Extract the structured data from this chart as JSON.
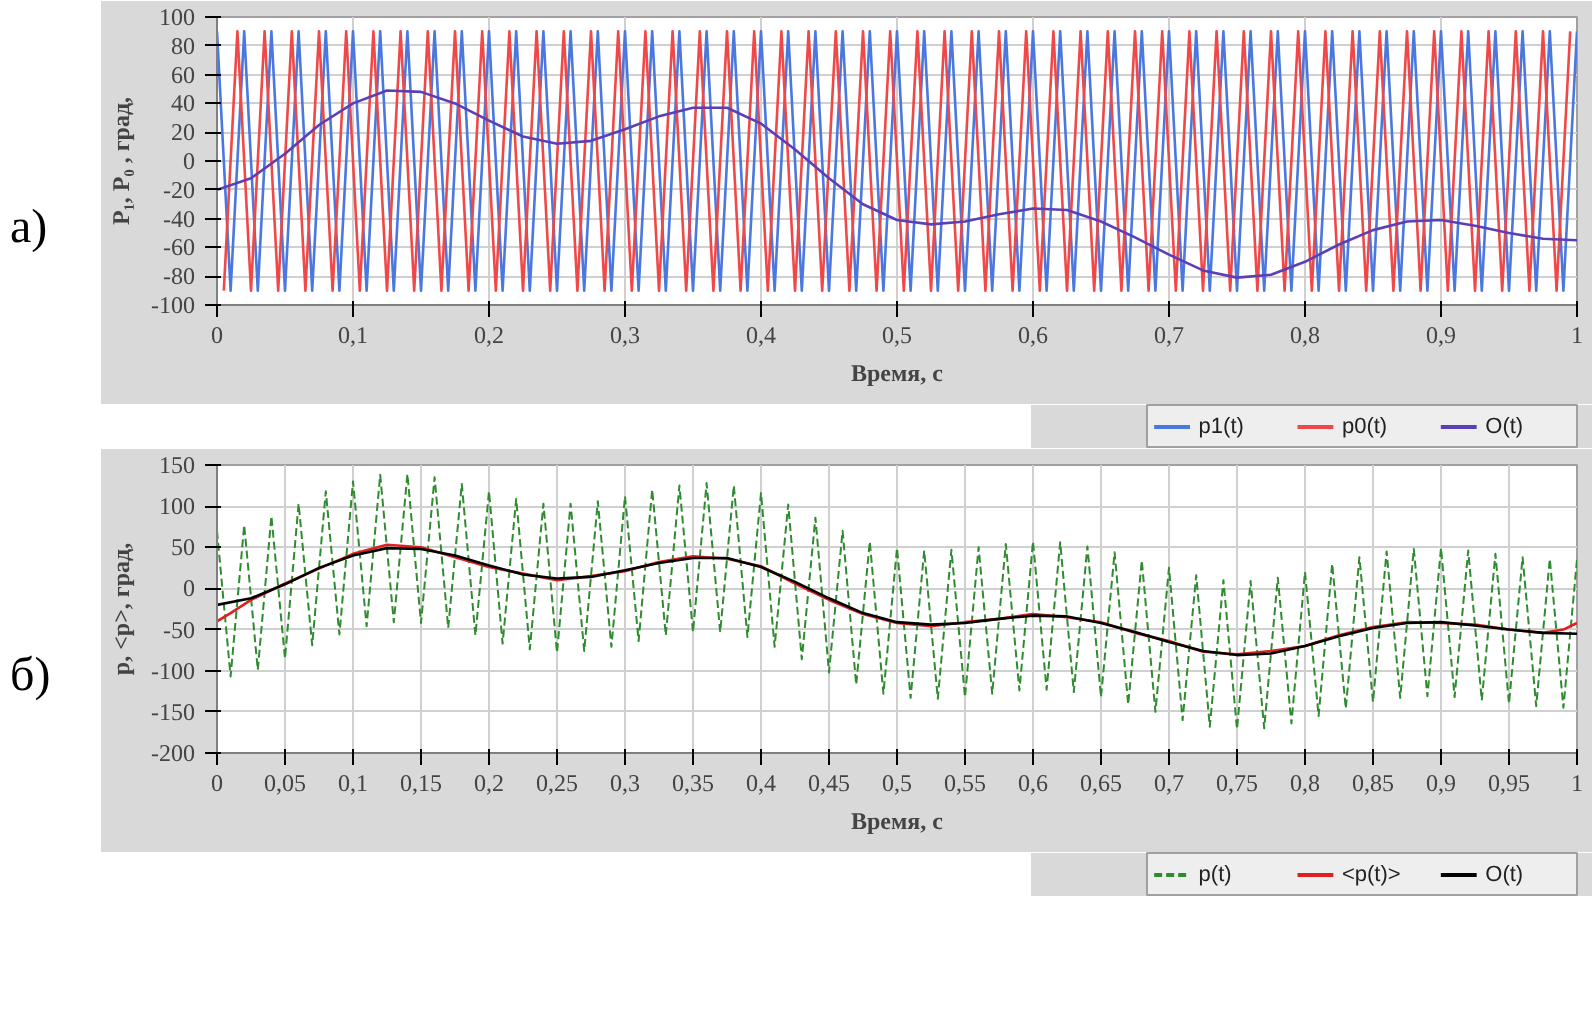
{
  "chart_data": [
    {
      "type": "line",
      "xlabel": "Время, с",
      "ylabel": "P₁, P₀ , град,",
      "annotations": [
        "а)"
      ],
      "xlim": [
        0,
        1
      ],
      "ylim": [
        -100,
        100
      ],
      "xticks": [
        0,
        {
          "value": 0.1,
          "label": "0,1"
        },
        {
          "value": 0.2,
          "label": "0,2"
        },
        {
          "value": 0.3,
          "label": "0,3"
        },
        {
          "value": 0.4,
          "label": "0,4"
        },
        {
          "value": 0.5,
          "label": "0,5"
        },
        {
          "value": 0.6,
          "label": "0,6"
        },
        {
          "value": 0.7,
          "label": "0,7"
        },
        {
          "value": 0.8,
          "label": "0,8"
        },
        {
          "value": 0.9,
          "label": "0,9"
        },
        1
      ],
      "yticks": [
        -100,
        -80,
        -60,
        -40,
        -20,
        0,
        20,
        40,
        60,
        80,
        100
      ],
      "grid": true,
      "legend": "bottom right",
      "series": [
        {
          "name": "p1(t)",
          "color": "#4a78e0",
          "line_style": "solid",
          "x": [
            0,
            0.01,
            0.02,
            0.03,
            0.04,
            0.05,
            0.06,
            0.07,
            0.08,
            0.09,
            0.1,
            0.11,
            0.12,
            0.13,
            0.14,
            0.15,
            0.16,
            0.17,
            0.18,
            0.19,
            0.2,
            0.21,
            0.22,
            0.23,
            0.24,
            0.25,
            0.26,
            0.27,
            0.28,
            0.29,
            0.3,
            0.31,
            0.32,
            0.33,
            0.34,
            0.35,
            0.36,
            0.37,
            0.38,
            0.39,
            0.4,
            0.41,
            0.42,
            0.43,
            0.44,
            0.45,
            0.46,
            0.47,
            0.48,
            0.49,
            0.5,
            0.51,
            0.52,
            0.53,
            0.54,
            0.55,
            0.56,
            0.57,
            0.58,
            0.59,
            0.6,
            0.61,
            0.62,
            0.63,
            0.64,
            0.65,
            0.66,
            0.67,
            0.68,
            0.69,
            0.7,
            0.71,
            0.72,
            0.73,
            0.74,
            0.75,
            0.76,
            0.77,
            0.78,
            0.79,
            0.8,
            0.81,
            0.82,
            0.83,
            0.84,
            0.85,
            0.86,
            0.87,
            0.88,
            0.89,
            0.9,
            0.91,
            0.92,
            0.93,
            0.94,
            0.95,
            0.96,
            0.97,
            0.98,
            0.99,
            1
          ],
          "values": [
            90,
            -90,
            90,
            -90,
            90,
            -90,
            90,
            -90,
            90,
            -90,
            90,
            -90,
            90,
            -90,
            90,
            -90,
            90,
            -90,
            90,
            -90,
            90,
            -90,
            90,
            -90,
            90,
            -90,
            90,
            -90,
            90,
            -90,
            90,
            -90,
            90,
            -90,
            90,
            -90,
            90,
            -90,
            90,
            -90,
            90,
            -90,
            90,
            -90,
            90,
            -90,
            90,
            -90,
            90,
            -90,
            90,
            -90,
            90,
            -90,
            90,
            -90,
            90,
            -90,
            90,
            -90,
            90,
            -90,
            90,
            -90,
            90,
            -90,
            90,
            -90,
            90,
            -90,
            90,
            -90,
            90,
            -90,
            90,
            -90,
            90,
            -90,
            90,
            -90,
            90,
            -90,
            90,
            -90,
            90,
            -90,
            90,
            -90,
            90,
            -90,
            90,
            -90,
            90,
            -90,
            90,
            -90,
            90,
            -90,
            90,
            -90,
            90
          ]
        },
        {
          "name": "p0(t)",
          "color": "#f04848",
          "line_style": "solid",
          "x": [
            0.005,
            0.015,
            0.025,
            0.035,
            0.045,
            0.055,
            0.065,
            0.075,
            0.085,
            0.095,
            0.105,
            0.115,
            0.125,
            0.135,
            0.145,
            0.155,
            0.165,
            0.175,
            0.185,
            0.195,
            0.205,
            0.215,
            0.225,
            0.235,
            0.245,
            0.255,
            0.265,
            0.275,
            0.285,
            0.295,
            0.305,
            0.315,
            0.325,
            0.335,
            0.345,
            0.355,
            0.365,
            0.375,
            0.385,
            0.395,
            0.405,
            0.415,
            0.425,
            0.435,
            0.445,
            0.455,
            0.465,
            0.475,
            0.485,
            0.495,
            0.505,
            0.515,
            0.525,
            0.535,
            0.545,
            0.555,
            0.565,
            0.575,
            0.585,
            0.595,
            0.605,
            0.615,
            0.625,
            0.635,
            0.645,
            0.655,
            0.665,
            0.675,
            0.685,
            0.695,
            0.705,
            0.715,
            0.725,
            0.735,
            0.745,
            0.755,
            0.765,
            0.775,
            0.785,
            0.795,
            0.805,
            0.815,
            0.825,
            0.835,
            0.845,
            0.855,
            0.865,
            0.875,
            0.885,
            0.895,
            0.905,
            0.915,
            0.925,
            0.935,
            0.945,
            0.955,
            0.965,
            0.975,
            0.985,
            0.995
          ],
          "values": [
            -90,
            90,
            -90,
            90,
            -90,
            90,
            -90,
            90,
            -90,
            90,
            -90,
            90,
            -90,
            90,
            -90,
            90,
            -90,
            90,
            -90,
            90,
            -90,
            90,
            -90,
            90,
            -90,
            90,
            -90,
            90,
            -90,
            90,
            -90,
            90,
            -90,
            90,
            -90,
            90,
            -90,
            90,
            -90,
            90,
            -90,
            90,
            -90,
            90,
            -90,
            90,
            -90,
            90,
            -90,
            90,
            -90,
            90,
            -90,
            90,
            -90,
            90,
            -90,
            90,
            -90,
            90,
            -90,
            90,
            -90,
            90,
            -90,
            90,
            -90,
            90,
            -90,
            90,
            -90,
            90,
            -90,
            90,
            -90,
            90,
            -90,
            90,
            -90,
            90,
            -90,
            90,
            -90,
            90,
            -90,
            90,
            -90,
            90,
            -90,
            90,
            -90,
            90,
            -90,
            90,
            -90,
            90,
            -90,
            90,
            -90,
            90
          ]
        },
        {
          "name": "O(t)",
          "color": "#5b3fb5",
          "line_style": "solid",
          "x": [
            0,
            0.025,
            0.05,
            0.075,
            0.1,
            0.125,
            0.15,
            0.175,
            0.2,
            0.225,
            0.25,
            0.275,
            0.3,
            0.325,
            0.35,
            0.375,
            0.4,
            0.425,
            0.45,
            0.475,
            0.5,
            0.525,
            0.55,
            0.575,
            0.6,
            0.625,
            0.65,
            0.675,
            0.7,
            0.725,
            0.75,
            0.775,
            0.8,
            0.825,
            0.85,
            0.875,
            0.9,
            0.925,
            0.95,
            0.975,
            1
          ],
          "values": [
            -20,
            -12,
            5,
            25,
            40,
            49,
            48,
            40,
            28,
            17,
            12,
            14,
            22,
            31,
            37,
            37,
            26,
            8,
            -12,
            -30,
            -41,
            -44,
            -42,
            -37,
            -33,
            -34,
            -42,
            -53,
            -65,
            -76,
            -81,
            -79,
            -70,
            -58,
            -48,
            -42,
            -41,
            -45,
            -50,
            -54,
            -55
          ]
        }
      ]
    },
    {
      "type": "line",
      "xlabel": "Время, с",
      "ylabel": "p, <p>, град,",
      "annotations": [
        "б)"
      ],
      "xlim": [
        0,
        1
      ],
      "ylim": [
        -200,
        150
      ],
      "xticks": [
        0,
        {
          "value": 0.05,
          "label": "0,05"
        },
        {
          "value": 0.1,
          "label": "0,1"
        },
        {
          "value": 0.15,
          "label": "0,15"
        },
        {
          "value": 0.2,
          "label": "0,2"
        },
        {
          "value": 0.25,
          "label": "0,25"
        },
        {
          "value": 0.3,
          "label": "0,3"
        },
        {
          "value": 0.35,
          "label": "0,35"
        },
        {
          "value": 0.4,
          "label": "0,4"
        },
        {
          "value": 0.45,
          "label": "0,45"
        },
        {
          "value": 0.5,
          "label": "0,5"
        },
        {
          "value": 0.55,
          "label": "0,55"
        },
        {
          "value": 0.6,
          "label": "0,6"
        },
        {
          "value": 0.65,
          "label": "0,65"
        },
        {
          "value": 0.7,
          "label": "0,7"
        },
        {
          "value": 0.75,
          "label": "0,75"
        },
        {
          "value": 0.8,
          "label": "0,8"
        },
        {
          "value": 0.85,
          "label": "0,85"
        },
        {
          "value": 0.9,
          "label": "0,9"
        },
        {
          "value": 0.95,
          "label": "0,95"
        },
        1
      ],
      "yticks": [
        -200,
        -150,
        -100,
        -50,
        0,
        50,
        100,
        150
      ],
      "grid": true,
      "legend": "bottom right",
      "series": [
        {
          "name": "p(t)",
          "color": "#2e8b2e",
          "line_style": "dashed",
          "x": [
            0,
            0.01,
            0.02,
            0.03,
            0.04,
            0.05,
            0.06,
            0.07,
            0.08,
            0.09,
            0.1,
            0.11,
            0.12,
            0.13,
            0.14,
            0.15,
            0.16,
            0.17,
            0.18,
            0.19,
            0.2,
            0.21,
            0.22,
            0.23,
            0.24,
            0.25,
            0.26,
            0.27,
            0.28,
            0.29,
            0.3,
            0.31,
            0.32,
            0.33,
            0.34,
            0.35,
            0.36,
            0.37,
            0.38,
            0.39,
            0.4,
            0.41,
            0.42,
            0.43,
            0.44,
            0.45,
            0.46,
            0.47,
            0.48,
            0.49,
            0.5,
            0.51,
            0.52,
            0.53,
            0.54,
            0.55,
            0.56,
            0.57,
            0.58,
            0.59,
            0.6,
            0.61,
            0.62,
            0.63,
            0.64,
            0.65,
            0.66,
            0.67,
            0.68,
            0.69,
            0.7,
            0.71,
            0.72,
            0.73,
            0.74,
            0.75,
            0.76,
            0.77,
            0.78,
            0.79,
            0.8,
            0.81,
            0.82,
            0.83,
            0.84,
            0.85,
            0.86,
            0.87,
            0.88,
            0.89,
            0.9,
            0.91,
            0.92,
            0.93,
            0.94,
            0.95,
            0.96,
            0.97,
            0.98,
            0.99,
            1
          ],
          "values": [
            70,
            -107,
            77,
            -99,
            88,
            -85,
            103,
            -69,
            118,
            -56,
            130,
            -46,
            138,
            -41,
            139,
            -42,
            135,
            -48,
            127,
            -57,
            118,
            -67,
            109,
            -74,
            103,
            -78,
            103,
            -76,
            106,
            -71,
            112,
            -64,
            120,
            -57,
            125,
            -53,
            128,
            -53,
            125,
            -59,
            116,
            -71,
            102,
            -86,
            86,
            -102,
            70,
            -117,
            57,
            -128,
            49,
            -133,
            46,
            -134,
            47,
            -132,
            50,
            -128,
            54,
            -124,
            57,
            -123,
            56,
            -126,
            51,
            -132,
            44,
            -141,
            34,
            -150,
            25,
            -160,
            16,
            -168,
            10,
            -171,
            9,
            -170,
            13,
            -164,
            20,
            -155,
            30,
            -146,
            38,
            -138,
            45,
            -133,
            48,
            -131,
            49,
            -132,
            46,
            -136,
            42,
            -140,
            38,
            -143,
            36,
            -145,
            35
          ]
        },
        {
          "name": "<p(t)>",
          "color": "#e02020",
          "line_style": "solid",
          "x": [
            0,
            0.01,
            0.025,
            0.05,
            0.075,
            0.1,
            0.125,
            0.15,
            0.175,
            0.2,
            0.225,
            0.25,
            0.275,
            0.3,
            0.325,
            0.35,
            0.375,
            0.4,
            0.425,
            0.45,
            0.475,
            0.5,
            0.525,
            0.55,
            0.575,
            0.6,
            0.625,
            0.65,
            0.675,
            0.7,
            0.725,
            0.75,
            0.775,
            0.8,
            0.825,
            0.85,
            0.875,
            0.9,
            0.925,
            0.95,
            0.975,
            0.99,
            1
          ],
          "values": [
            -40,
            -30,
            -14,
            6,
            24,
            42,
            53,
            50,
            38,
            26,
            18,
            10,
            15,
            21,
            32,
            39,
            36,
            27,
            6,
            -14,
            -31,
            -42,
            -46,
            -41,
            -37,
            -31,
            -35,
            -41,
            -54,
            -64,
            -77,
            -80,
            -76,
            -70,
            -57,
            -47,
            -41,
            -42,
            -44,
            -50,
            -54,
            -50,
            -42
          ]
        },
        {
          "name": "O(t)",
          "color": "#000000",
          "line_style": "solid",
          "x": [
            0,
            0.025,
            0.05,
            0.075,
            0.1,
            0.125,
            0.15,
            0.175,
            0.2,
            0.225,
            0.25,
            0.275,
            0.3,
            0.325,
            0.35,
            0.375,
            0.4,
            0.425,
            0.45,
            0.475,
            0.5,
            0.525,
            0.55,
            0.575,
            0.6,
            0.625,
            0.65,
            0.675,
            0.7,
            0.725,
            0.75,
            0.775,
            0.8,
            0.825,
            0.85,
            0.875,
            0.9,
            0.925,
            0.95,
            0.975,
            1
          ],
          "values": [
            -20,
            -12,
            5,
            25,
            40,
            49,
            48,
            40,
            28,
            17,
            12,
            14,
            22,
            31,
            37,
            37,
            26,
            8,
            -12,
            -30,
            -41,
            -44,
            -42,
            -37,
            -33,
            -34,
            -42,
            -53,
            -65,
            -76,
            -81,
            -79,
            -70,
            -58,
            -48,
            -42,
            -41,
            -45,
            -50,
            -54,
            -55
          ]
        }
      ]
    }
  ]
}
